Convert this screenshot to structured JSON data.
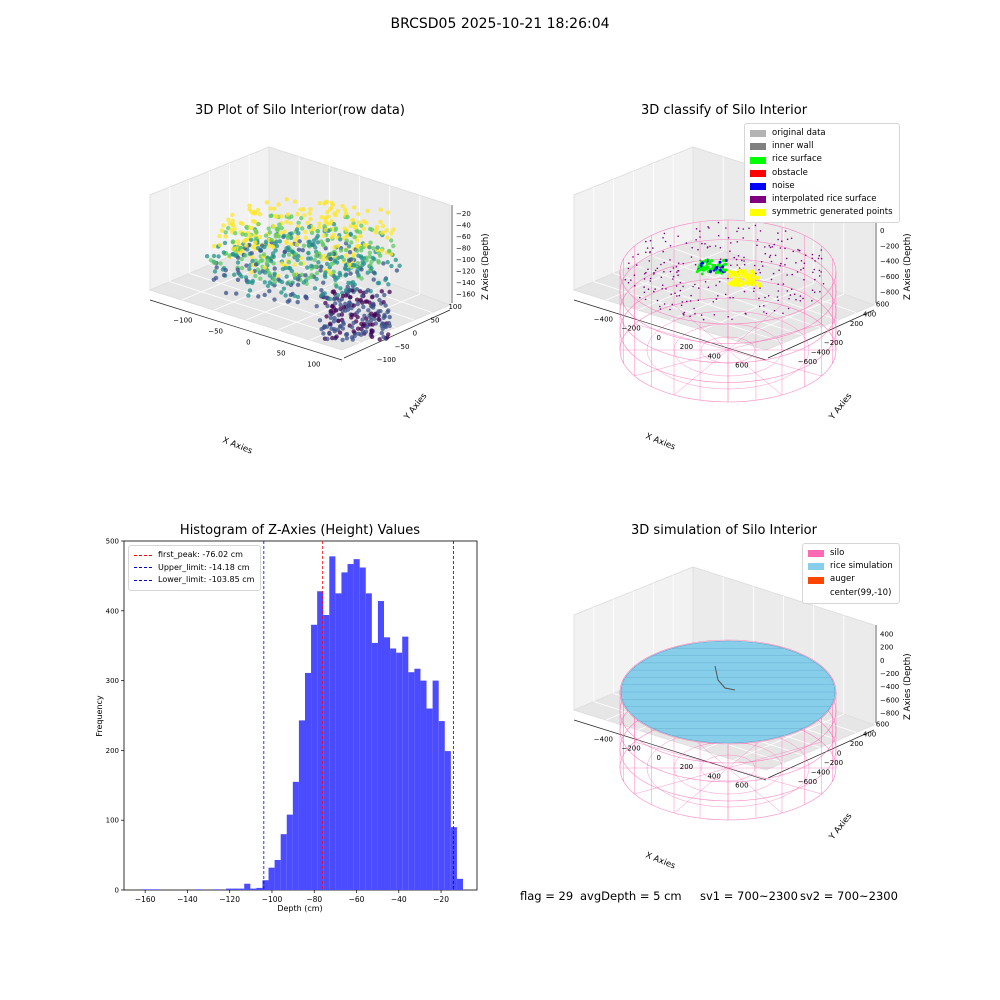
{
  "figure": {
    "suptitle": "BRCSD05 2025-10-21 18:26:04",
    "footer": {
      "flag": "flag = 29",
      "avg_depth": "avgDepth = 5 cm",
      "sv1": "sv1 = 700~2300",
      "sv2": "sv2 = 700~2300"
    }
  },
  "panel_raw": {
    "title": "3D Plot of Silo Interior(row data)",
    "xlabel": "X Axies",
    "ylabel": "Y Axies",
    "zlabel": "Z Axies (Depth)",
    "x_ticks": [
      "−100",
      "−50",
      "0",
      "50",
      "100"
    ],
    "y_ticks": [
      "−100",
      "−50",
      "0",
      "50",
      "100"
    ],
    "z_ticks": [
      "−20",
      "−40",
      "−60",
      "−80",
      "−100",
      "−120",
      "−140",
      "−160"
    ],
    "colormap": [
      "#440154",
      "#3b528b",
      "#21918c",
      "#5ec962",
      "#fde725"
    ]
  },
  "panel_classify": {
    "title": "3D classify of Silo Interior",
    "xlabel": "X Axies",
    "ylabel": "Y Axies",
    "zlabel": "Z Axies (Depth)",
    "x_ticks": [
      "−400",
      "−200",
      "0",
      "200",
      "400",
      "600"
    ],
    "y_ticks": [
      "−600",
      "−400",
      "−200",
      "0",
      "200",
      "400",
      "600"
    ],
    "z_ticks": [
      "200",
      "0",
      "−200",
      "−400",
      "−600",
      "−800"
    ],
    "legend": [
      {
        "label": "original data",
        "color": "#b3b3b3"
      },
      {
        "label": "inner wall",
        "color": "#808080"
      },
      {
        "label": "rice surface",
        "color": "#00ff00"
      },
      {
        "label": "obstacle",
        "color": "#ff0000"
      },
      {
        "label": "noise",
        "color": "#0000ff"
      },
      {
        "label": "interpolated rice surface",
        "color": "#800080"
      },
      {
        "label": "symmetric generated points",
        "color": "#ffff00"
      }
    ]
  },
  "panel_sim": {
    "title": "3D simulation of Silo Interior",
    "xlabel": "X Axies",
    "ylabel": "Y Axies",
    "zlabel": "Z Axies (Depth)",
    "x_ticks": [
      "−400",
      "−200",
      "0",
      "200",
      "400",
      "600"
    ],
    "y_ticks": [
      "−600",
      "−400",
      "−200",
      "0",
      "200",
      "400",
      "600"
    ],
    "z_ticks": [
      "400",
      "200",
      "0",
      "−200",
      "−400",
      "−600",
      "−800"
    ],
    "legend": [
      {
        "label": "silo",
        "color": "#ff69b4"
      },
      {
        "label": "rice simulation",
        "color": "#87ceeb"
      },
      {
        "label": "auger",
        "color": "#ff4500"
      },
      {
        "label": "center(99,-10)",
        "color": ""
      }
    ]
  },
  "chart_data": {
    "type": "bar",
    "title": "Histogram of Z-Axies (Height) Values",
    "xlabel": "Depth (cm)",
    "ylabel": "Frequency",
    "xlim": [
      -170,
      -3
    ],
    "ylim": [
      0,
      500
    ],
    "x_ticks": [
      -160,
      -140,
      -120,
      -100,
      -80,
      -60,
      -40,
      -20
    ],
    "y_ticks": [
      0,
      100,
      200,
      300,
      400,
      500
    ],
    "bar_color": "#4b4bff",
    "bin_start": -162,
    "bin_width": 2.875,
    "counts": [
      1,
      1,
      1,
      0,
      0,
      0,
      0,
      0,
      0,
      1,
      0,
      0,
      1,
      0,
      2,
      2,
      2,
      9,
      2,
      3,
      14,
      32,
      43,
      80,
      108,
      155,
      243,
      311,
      380,
      428,
      394,
      478,
      425,
      455,
      467,
      474,
      462,
      425,
      354,
      414,
      362,
      346,
      340,
      363,
      312,
      317,
      300,
      260,
      300,
      242,
      199,
      90,
      16
    ],
    "x_tick_labels": [
      "−160",
      "−140",
      "−120",
      "−100",
      "−80",
      "−60",
      "−40",
      "−20"
    ],
    "y_tick_labels": [
      "0",
      "100",
      "200",
      "300",
      "400",
      "500"
    ],
    "reference_lines": [
      {
        "label": "first_peak: -76.02 cm",
        "x": -76.02,
        "color": "#ff0000"
      },
      {
        "label": "Upper_limit: -14.18 cm",
        "x": -14.18,
        "color": "#0000cc"
      },
      {
        "label": "Lower_limit: -103.85 cm",
        "x": -103.85,
        "color": "#0000cc"
      }
    ],
    "legend_position": "upper left"
  }
}
